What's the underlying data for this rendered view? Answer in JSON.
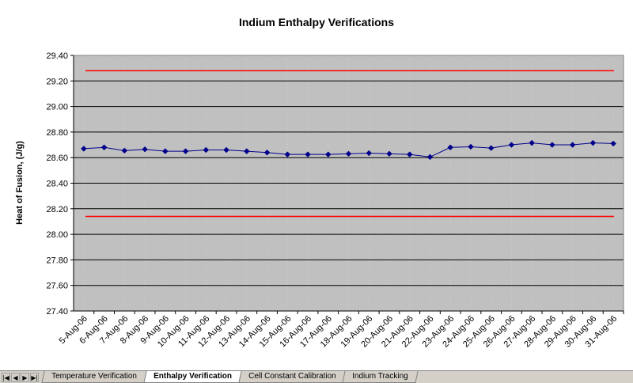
{
  "chart_data": {
    "type": "line",
    "title": "Indium Enthalpy Verifications",
    "ylabel": "Heat of Fusion, (J/g)",
    "xlabel": "",
    "ylim": [
      27.4,
      29.4
    ],
    "ytick_step": 0.2,
    "ytick_labels": [
      "27.40",
      "27.60",
      "27.80",
      "28.00",
      "28.20",
      "28.40",
      "28.60",
      "28.80",
      "29.00",
      "29.20",
      "29.40"
    ],
    "categories": [
      "5-Aug-06",
      "6-Aug-06",
      "7-Aug-06",
      "8-Aug-06",
      "9-Aug-06",
      "10-Aug-06",
      "11-Aug-06",
      "12-Aug-06",
      "13-Aug-06",
      "14-Aug-06",
      "15-Aug-06",
      "16-Aug-06",
      "17-Aug-06",
      "18-Aug-06",
      "19-Aug-06",
      "20-Aug-06",
      "21-Aug-06",
      "22-Aug-06",
      "23-Aug-06",
      "24-Aug-06",
      "25-Aug-06",
      "26-Aug-06",
      "27-Aug-06",
      "28-Aug-06",
      "29-Aug-06",
      "30-Aug-06",
      "31-Aug-06"
    ],
    "series": [
      {
        "color": "#00008b",
        "marker": "diamond",
        "values": [
          28.67,
          28.68,
          28.655,
          28.665,
          28.65,
          28.65,
          28.66,
          28.66,
          28.65,
          28.64,
          28.625,
          28.625,
          28.625,
          28.63,
          28.635,
          28.63,
          28.625,
          28.605,
          28.68,
          28.685,
          28.675,
          28.7,
          28.715,
          28.7,
          28.7,
          28.715,
          28.71
        ]
      }
    ],
    "limits": [
      {
        "value": 29.28,
        "color": "#ff0000"
      },
      {
        "value": 28.14,
        "color": "#ff0000"
      }
    ],
    "plot_background": "#c0c0c0",
    "grid": true
  },
  "sheet_tabs": {
    "nav_first": "|◀",
    "nav_prev": "◀",
    "nav_next": "▶",
    "nav_last": "▶|",
    "tabs": [
      {
        "label": "Temperature Verification",
        "active": false
      },
      {
        "label": "Enthalpy Verification",
        "active": true
      },
      {
        "label": "Cell Constant Calibration",
        "active": false
      },
      {
        "label": "Indium Tracking",
        "active": false
      }
    ]
  }
}
